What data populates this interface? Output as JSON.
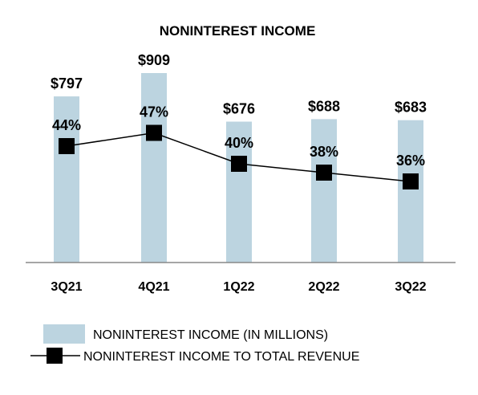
{
  "chart_data": {
    "type": "bar",
    "title": "NONINTEREST INCOME",
    "categories": [
      "3Q21",
      "4Q21",
      "1Q22",
      "2Q22",
      "3Q22"
    ],
    "series": [
      {
        "name": "NONINTEREST INCOME (IN MILLIONS)",
        "type": "bar",
        "values": [
          797,
          909,
          676,
          688,
          683
        ],
        "labels": [
          "$797",
          "$909",
          "$676",
          "$688",
          "$683"
        ],
        "color": "#bcd4e0"
      },
      {
        "name": "NONINTEREST INCOME TO TOTAL REVENUE",
        "type": "line",
        "values": [
          44,
          47,
          40,
          38,
          36
        ],
        "labels": [
          "44%",
          "47%",
          "40%",
          "38%",
          "36%"
        ],
        "color": "#000000"
      }
    ],
    "ylim": [
      0,
      1000
    ],
    "grid": false,
    "legend_position": "bottom-left"
  }
}
